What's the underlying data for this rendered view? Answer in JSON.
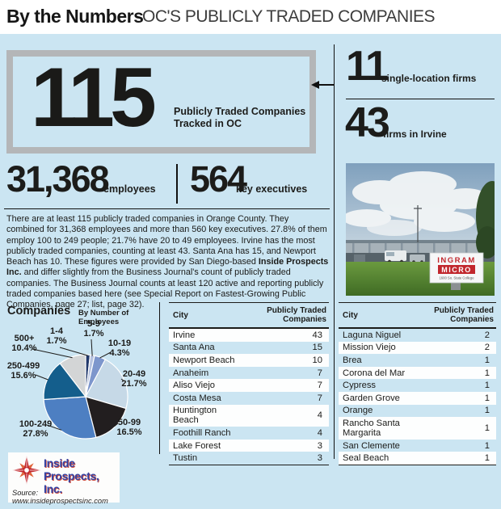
{
  "header": {
    "title": "By the Numbers",
    "subtitle": "OC'S PUBLICLY TRADED COMPANIES"
  },
  "hero": {
    "value": "115",
    "caption_line1": "Publicly Traded Companies",
    "caption_line2": "Tracked in OC"
  },
  "side_stats": [
    {
      "value": "11",
      "label": "single-location firms"
    },
    {
      "value": "43",
      "label": "firms in Irvine"
    }
  ],
  "summary_stats": [
    {
      "value": "31,368",
      "label": "employees"
    },
    {
      "value": "564",
      "label": "key executives"
    }
  ],
  "paragraph": {
    "before": "There are at least 115 publicly traded companies in Orange County. They combined for 31,368 employees and more than 560 key executives. 27.8% of them employ 100 to 249 people; 21.7% have 20 to 49 employees. Irvine has the most publicly traded companies, counting at least 43. Santa Ana has 15, and Newport Beach has 10. These figures were provided by San Diego-based ",
    "bold": "Inside Prospects Inc.",
    "after": " and differ slightly from the Business Journal's count of publicly traded companies. The Business Journal counts at least 120 active and reporting publicly traded companies based here (see Special Report on Fastest-Growing Public Companies, page 27; list, page 32)."
  },
  "chart_data": [
    {
      "type": "pie",
      "title": "Companies",
      "subtitle": "By Number of Employees",
      "legend_position": "around-slices",
      "slices": [
        {
          "label": "1-4",
          "pct": 1.7,
          "pct_text": "1.7%",
          "color": "#21386b"
        },
        {
          "label": "5-9",
          "pct": 1.7,
          "pct_text": "1.7%",
          "color": "#b7c3e0"
        },
        {
          "label": "10-19",
          "pct": 4.3,
          "pct_text": "4.3%",
          "color": "#7d96cc"
        },
        {
          "label": "20-49",
          "pct": 21.7,
          "pct_text": "21.7%",
          "color": "#c6d9e7"
        },
        {
          "label": "50-99",
          "pct": 16.5,
          "pct_text": "16.5%",
          "color": "#221e1f"
        },
        {
          "label": "100-249",
          "pct": 27.8,
          "pct_text": "27.8%",
          "color": "#4d7fc2"
        },
        {
          "label": "250-499",
          "pct": 15.6,
          "pct_text": "15.6%",
          "color": "#145e8c"
        },
        {
          "label": "500+",
          "pct": 10.4,
          "pct_text": "10.4%",
          "color": "#d3d5d6"
        }
      ]
    },
    {
      "type": "table",
      "headers": [
        "City",
        "Publicly Traded Companies"
      ],
      "rows": [
        [
          "Irvine",
          "43"
        ],
        [
          "Santa Ana",
          "15"
        ],
        [
          "Newport Beach",
          "10"
        ],
        [
          "Anaheim",
          "7"
        ],
        [
          "Aliso Viejo",
          "7"
        ],
        [
          "Costa Mesa",
          "7"
        ],
        [
          "Huntington Beach",
          "4"
        ],
        [
          "Foothill Ranch",
          "4"
        ],
        [
          "Lake Forest",
          "3"
        ],
        [
          "Tustin",
          "3"
        ]
      ],
      "first_row_white": true
    },
    {
      "type": "table",
      "headers": [
        "City",
        "Publicly Traded Companies"
      ],
      "rows": [
        [
          "Laguna Niguel",
          "2"
        ],
        [
          "Mission Viejo",
          "2"
        ],
        [
          "Brea",
          "1"
        ],
        [
          "Corona del Mar",
          "1"
        ],
        [
          "Cypress",
          "1"
        ],
        [
          "Garden Grove",
          "1"
        ],
        [
          "Orange",
          "1"
        ],
        [
          "Rancho Santa Margarita",
          "1"
        ],
        [
          "San Clemente",
          "1"
        ],
        [
          "Seal Beach",
          "1"
        ]
      ],
      "first_row_white": false
    }
  ],
  "photo": {
    "sign_line1": "INGRAM",
    "sign_line2": "MICRO",
    "sign_line3": "1600  So. State College"
  },
  "logo": {
    "line1": "Inside",
    "line2": "Prospects, Inc.",
    "source": "Source: www.insideprospectsinc.com"
  },
  "colors": {
    "panel_blue": "#cbe5f2",
    "hero_border_gray": "#b4b6b8",
    "text_black": "#1c1c1a"
  }
}
